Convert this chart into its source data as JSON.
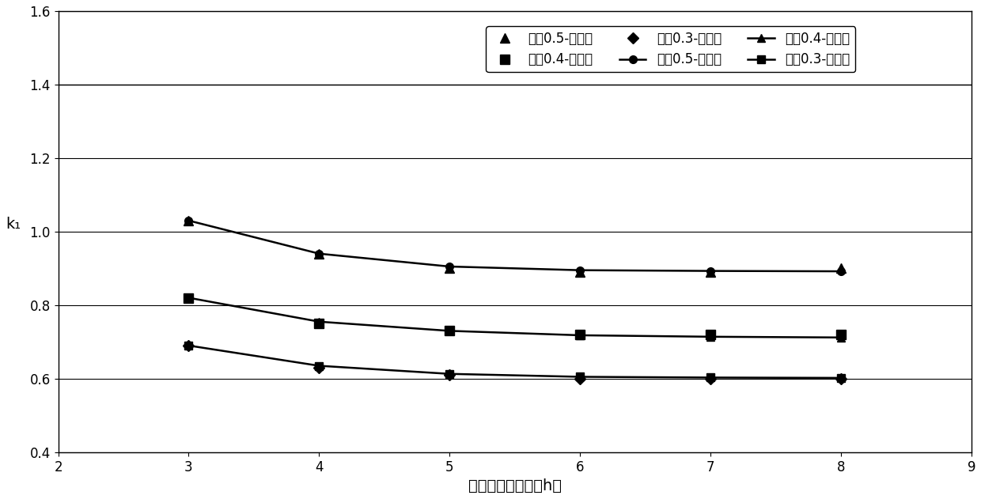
{
  "x": [
    3,
    4,
    5,
    6,
    7,
    8
  ],
  "series": {
    "layer05_calc": {
      "label": "层厚0.5-计算值",
      "values": [
        1.03,
        0.94,
        0.9,
        0.89,
        0.89,
        0.9
      ],
      "marker": "^",
      "linestyle": "none",
      "color": "#000000",
      "markersize": 8
    },
    "layer04_calc": {
      "label": "层厚0.4-计算值",
      "values": [
        0.82,
        0.75,
        0.73,
        0.72,
        0.72,
        0.72
      ],
      "marker": "s",
      "linestyle": "none",
      "color": "#000000",
      "markersize": 8
    },
    "layer03_calc": {
      "label": "层厚0.3-计算值",
      "values": [
        0.69,
        0.63,
        0.61,
        0.6,
        0.6,
        0.6
      ],
      "marker": "D",
      "linestyle": "none",
      "color": "#000000",
      "markersize": 7
    },
    "layer05_fit": {
      "label": "层厚0.5-拟合值",
      "values": [
        1.03,
        0.94,
        0.905,
        0.895,
        0.893,
        0.892
      ],
      "marker": "o",
      "linestyle": "-",
      "color": "#000000",
      "markersize": 7
    },
    "layer04_fit": {
      "label": "层厚0.4-拟合值",
      "values": [
        0.82,
        0.755,
        0.73,
        0.718,
        0.714,
        0.712
      ],
      "marker": "^",
      "linestyle": "-",
      "color": "#000000",
      "markersize": 7
    },
    "layer03_fit": {
      "label": "层厚0.3-拟合值",
      "values": [
        0.69,
        0.635,
        0.613,
        0.605,
        0.603,
        0.602
      ],
      "marker": "s",
      "linestyle": "-",
      "color": "#000000",
      "markersize": 7
    }
  },
  "xlabel": "铺筑层间歇时间（h）",
  "ylabel": "k₁",
  "xlim": [
    2,
    9
  ],
  "ylim": [
    0.4,
    1.6
  ],
  "yticks": [
    0.4,
    0.6,
    0.8,
    1.0,
    1.2,
    1.4,
    1.6
  ],
  "xticks": [
    2,
    3,
    4,
    5,
    6,
    7,
    8,
    9
  ],
  "background_color": "#ffffff",
  "grid_color": "#000000",
  "linewidth": 1.8
}
